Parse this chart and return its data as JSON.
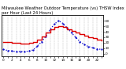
{
  "title": "Milwaukee Weather Outdoor Temperature (vs) THSW Index per Hour (Last 24 Hours)",
  "hours": [
    0,
    1,
    2,
    3,
    4,
    5,
    6,
    7,
    8,
    9,
    10,
    11,
    12,
    13,
    14,
    15,
    16,
    17,
    18,
    19,
    20,
    21,
    22,
    23
  ],
  "temp": [
    22,
    21,
    20,
    20,
    19,
    19,
    20,
    21,
    26,
    32,
    38,
    44,
    48,
    50,
    48,
    45,
    42,
    39,
    36,
    33,
    30,
    28,
    26,
    24
  ],
  "thsw": [
    8,
    6,
    5,
    4,
    4,
    4,
    5,
    7,
    14,
    22,
    32,
    44,
    54,
    60,
    55,
    47,
    38,
    30,
    22,
    17,
    13,
    11,
    9,
    8
  ],
  "temp_color": "#dd0000",
  "thsw_color": "#0000cc",
  "background_color": "#ffffff",
  "grid_color": "#999999",
  "ylim": [
    -5,
    70
  ],
  "yticks": [
    0,
    10,
    20,
    30,
    40,
    50,
    60
  ],
  "ytick_labels": [
    "0",
    "10",
    "20",
    "30",
    "40",
    "50",
    "60"
  ],
  "title_fontsize": 3.8,
  "tick_fontsize": 3.0,
  "linewidth_temp": 1.0,
  "linewidth_thsw": 0.9
}
